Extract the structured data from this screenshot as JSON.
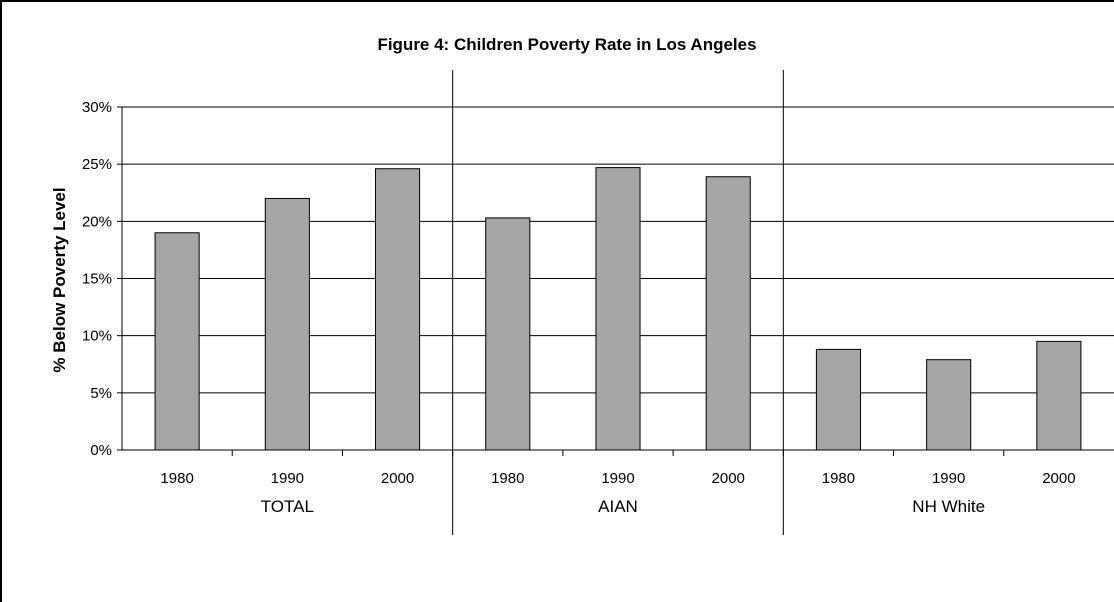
{
  "chart_data": {
    "type": "bar",
    "title": "Figure 4: Children Poverty Rate in Los Angeles",
    "ylabel": "% Below Poverty Level",
    "xlabel": "",
    "ylim": [
      0,
      30
    ],
    "yticks": [
      0,
      5,
      10,
      15,
      20,
      25,
      30
    ],
    "ytick_labels": [
      "0%",
      "5%",
      "10%",
      "15%",
      "20%",
      "25%",
      "30%"
    ],
    "grid": true,
    "groups": [
      {
        "name": "TOTAL",
        "categories": [
          "1980",
          "1990",
          "2000"
        ],
        "values": [
          19.0,
          22.0,
          24.6
        ]
      },
      {
        "name": "AIAN",
        "categories": [
          "1980",
          "1990",
          "2000"
        ],
        "values": [
          20.3,
          24.7,
          23.9
        ]
      },
      {
        "name": "NH White",
        "categories": [
          "1980",
          "1990",
          "2000"
        ],
        "values": [
          8.8,
          7.9,
          9.5
        ]
      }
    ],
    "bar_color": "#a6a6a6"
  }
}
